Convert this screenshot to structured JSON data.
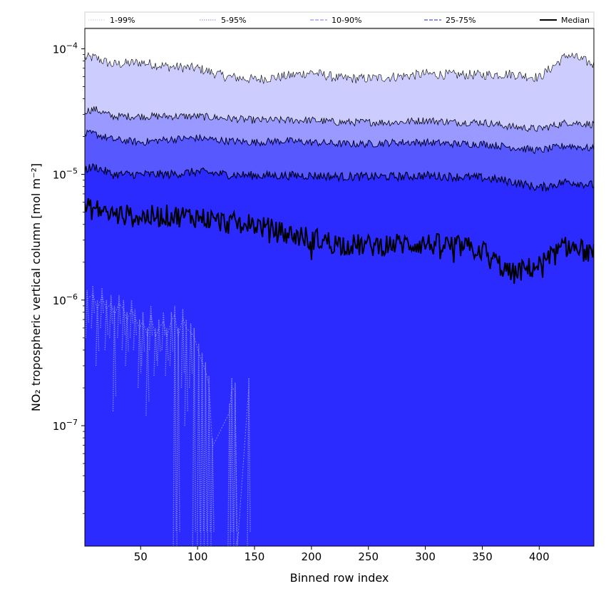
{
  "chart_data": {
    "type": "area",
    "title": "",
    "xlabel": "Binned row index",
    "ylabel": "NO₂ tropospheric vertical column [mol m⁻²]",
    "yscale": "log",
    "xlim": [
      1,
      448
    ],
    "ylim": [
      1.1e-08,
      0.000145
    ],
    "xticks": [
      50,
      100,
      150,
      200,
      250,
      300,
      350,
      400
    ],
    "xtick_labels": [
      "50",
      "100",
      "150",
      "200",
      "250",
      "300",
      "350",
      "400"
    ],
    "yticks": [
      1e-07,
      1e-06,
      1e-05,
      0.0001
    ],
    "ytick_labels": [
      {
        "base": "10",
        "exp": "−7"
      },
      {
        "base": "10",
        "exp": "−6"
      },
      {
        "base": "10",
        "exp": "−5"
      },
      {
        "base": "10",
        "exp": "−4"
      }
    ],
    "legend": {
      "placement": "top (above plot, single row)",
      "entries": [
        {
          "label": "1-99%",
          "style": "dotted",
          "color": "#d4d4f4"
        },
        {
          "label": "5-95%",
          "style": "dotted",
          "color": "#9a9ae8"
        },
        {
          "label": "10-90%",
          "style": "dashed",
          "color": "#8c8cff"
        },
        {
          "label": "25-75%",
          "style": "dashed",
          "color": "#4a4ad8"
        },
        {
          "label": "Median",
          "style": "solid",
          "color": "#000000"
        }
      ]
    },
    "band_colors": {
      "p01_p99": "#ccccff",
      "p05_p95": "#9999ff",
      "p10_p90": "#5858ff",
      "p25_p75": "#2b2bff"
    },
    "x_anchor": [
      1,
      10,
      25,
      50,
      75,
      100,
      125,
      150,
      175,
      200,
      225,
      250,
      275,
      300,
      325,
      350,
      375,
      400,
      425,
      448
    ],
    "series": [
      {
        "name": "p99",
        "values": [
          8.5e-05,
          8.5e-05,
          7.5e-05,
          7.8e-05,
          7.2e-05,
          7e-05,
          6e-05,
          5.7e-05,
          6e-05,
          6.5e-05,
          5.8e-05,
          5.8e-05,
          6e-05,
          6.3e-05,
          6.2e-05,
          6.2e-05,
          6.3e-05,
          5.9e-05,
          9e-05,
          7.5e-05
        ]
      },
      {
        "name": "p95",
        "values": [
          3.2e-05,
          3.3e-05,
          2.9e-05,
          2.9e-05,
          2.9e-05,
          2.9e-05,
          2.8e-05,
          2.7e-05,
          2.7e-05,
          2.7e-05,
          2.6e-05,
          2.6e-05,
          2.6e-05,
          2.7e-05,
          2.6e-05,
          2.6e-05,
          2.4e-05,
          2.3e-05,
          2.6e-05,
          2.5e-05
        ]
      },
      {
        "name": "p90",
        "values": [
          2.1e-05,
          2.1e-05,
          1.9e-05,
          1.8e-05,
          1.9e-05,
          1.95e-05,
          1.85e-05,
          1.8e-05,
          1.85e-05,
          1.8e-05,
          1.75e-05,
          1.75e-05,
          1.8e-05,
          1.8e-05,
          1.75e-05,
          1.75e-05,
          1.65e-05,
          1.55e-05,
          1.7e-05,
          1.6e-05
        ]
      },
      {
        "name": "p75",
        "values": [
          1.1e-05,
          1.15e-05,
          1e-05,
          1e-05,
          1e-05,
          1.05e-05,
          1e-05,
          9.8e-06,
          9.8e-06,
          9.8e-06,
          9.6e-06,
          9.6e-06,
          9.6e-06,
          9.8e-06,
          9.6e-06,
          9.4e-06,
          8.8e-06,
          7.8e-06,
          8.8e-06,
          8.2e-06
        ]
      },
      {
        "name": "Median",
        "values": [
          5.3e-06,
          5.3e-06,
          4.8e-06,
          4.6e-06,
          4.7e-06,
          4.6e-06,
          4.1e-06,
          4e-06,
          3.4e-06,
          3.1e-06,
          2.8e-06,
          2.7e-06,
          2.8e-06,
          2.8e-06,
          2.7e-06,
          2.5e-06,
          1.6e-06,
          1.9e-06,
          2.7e-06,
          2.3e-06
        ]
      }
    ],
    "p10_spikes": {
      "note": "light-blue dotted spikes of the lower bands, visible for low row indices",
      "x": [
        3,
        8,
        12,
        16,
        20,
        24,
        27,
        31,
        35,
        38,
        42,
        45,
        49,
        52,
        56,
        59,
        63,
        66,
        70,
        73,
        77,
        80,
        83,
        87,
        90,
        94,
        97,
        101,
        104,
        107,
        110,
        113,
        128,
        130,
        133,
        135,
        145
      ],
      "top": [
        1.2e-06,
        1.3e-06,
        1e-06,
        1.25e-06,
        1e-06,
        1.1e-06,
        9e-07,
        1.1e-06,
        1e-06,
        8e-07,
        1e-06,
        8.5e-07,
        7e-07,
        8e-07,
        6e-07,
        9e-07,
        6e-07,
        7e-07,
        8e-07,
        6e-07,
        8e-07,
        9e-07,
        6e-07,
        8.5e-07,
        7e-07,
        6.5e-07,
        6e-07,
        4.5e-07,
        3.8e-07,
        3.2e-07,
        2.5e-07,
        8e-08,
        1.5e-07,
        2.4e-07,
        2.2e-07,
        1.3e-08,
        2.4e-07
      ],
      "bottom": [
        5e-07,
        6e-07,
        3e-07,
        6e-07,
        4e-07,
        5e-07,
        1.3e-07,
        5e-07,
        4e-07,
        3e-07,
        5e-07,
        4e-07,
        2e-07,
        3e-07,
        1.2e-07,
        4e-07,
        2.5e-07,
        3e-07,
        4e-07,
        2.5e-07,
        3e-07,
        1.1e-08,
        1.1e-08,
        2e-07,
        1e-07,
        2e-07,
        1.1e-08,
        1.1e-08,
        1.1e-08,
        1.1e-08,
        1.1e-08,
        1.1e-08,
        1.1e-08,
        1.1e-08,
        1.1e-08,
        1.1e-08,
        1.1e-08
      ]
    }
  }
}
